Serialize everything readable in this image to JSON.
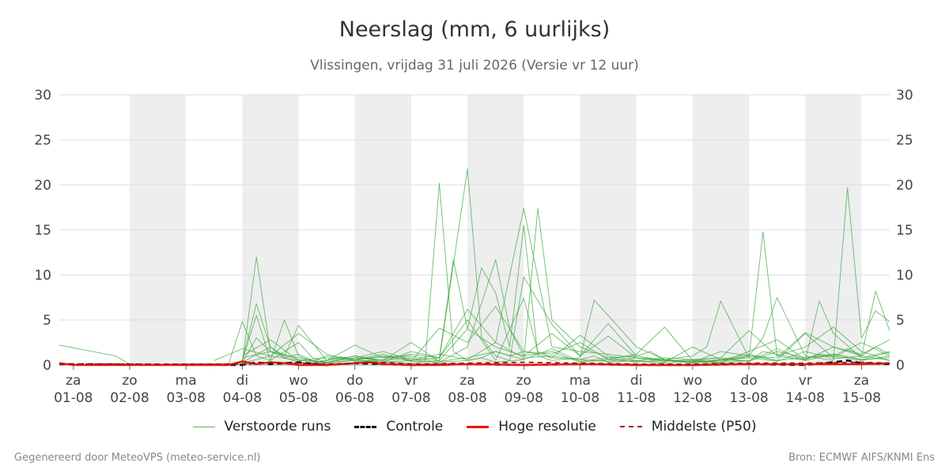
{
  "header": {
    "title": "Neerslag (mm, 6 uurlijks)",
    "subtitle": "Vlissingen, vrijdag 31 juli 2026 (Versie vr 12 uur)"
  },
  "footer": {
    "left": "Gegenereerd door MeteoVPS (meteo-service.nl)",
    "right": "Bron: ECMWF AIFS/KNMI Ens"
  },
  "legend": [
    {
      "label": "Verstoorde runs",
      "color": "#5cb85c",
      "style": "thin-solid"
    },
    {
      "label": "Controle",
      "color": "#111111",
      "style": "dashed"
    },
    {
      "label": "Hoge resolutie",
      "color": "#e8160c",
      "style": "solid"
    },
    {
      "label": "Middelste (P50)",
      "color": "#aa1111",
      "style": "dashed"
    }
  ],
  "colors": {
    "members": "#3aa53a",
    "control": "#111111",
    "hres": "#e8160c",
    "median": "#aa1111",
    "shade": "#eeeeee",
    "grid": "#dddddd"
  },
  "chart_data": {
    "type": "line",
    "title": "Neerslag (mm, 6 uurlijks)",
    "xlabel": "",
    "ylabel": "",
    "ylim": [
      0,
      30
    ],
    "yticks": [
      0,
      5,
      10,
      15,
      20,
      25,
      30
    ],
    "y_axis_both_sides": true,
    "grid": "horizontal",
    "legend_position": "bottom",
    "x_unit": "days from 01-08 00h (6-hourly steps)",
    "x_days": [
      {
        "day": "za",
        "date": "01-08"
      },
      {
        "day": "zo",
        "date": "02-08"
      },
      {
        "day": "ma",
        "date": "03-08"
      },
      {
        "day": "di",
        "date": "04-08"
      },
      {
        "day": "wo",
        "date": "05-08"
      },
      {
        "day": "do",
        "date": "06-08"
      },
      {
        "day": "vr",
        "date": "07-08"
      },
      {
        "day": "za",
        "date": "08-08"
      },
      {
        "day": "zo",
        "date": "09-08"
      },
      {
        "day": "ma",
        "date": "10-08"
      },
      {
        "day": "di",
        "date": "11-08"
      },
      {
        "day": "wo",
        "date": "12-08"
      },
      {
        "day": "do",
        "date": "13-08"
      },
      {
        "day": "vr",
        "date": "14-08"
      },
      {
        "day": "za",
        "date": "15-08"
      }
    ],
    "shaded_days": [
      "02-08",
      "04-08",
      "06-08",
      "08-08",
      "10-08",
      "12-08",
      "14-08"
    ],
    "x_start": -0.25,
    "x_end": 14.5,
    "series": [
      {
        "name": "Verstoorde runs",
        "role": "member",
        "x": [
          -0.25,
          0.75,
          1.0,
          4.25,
          4.5,
          4.75,
          5.0,
          5.75,
          6.0,
          6.5,
          7.0,
          7.25,
          7.5,
          7.75,
          8.0,
          8.25,
          8.5,
          9.0,
          9.25,
          9.5,
          10.0,
          10.5,
          11.0,
          11.5,
          12.0,
          12.25,
          13.0,
          13.25,
          13.5,
          13.75,
          14.0,
          14.25,
          14.5
        ],
        "values": [
          2.2,
          1.0,
          0.1,
          0.2,
          0.5,
          0.9,
          0.6,
          1.0,
          0.4,
          0.3,
          0.5,
          0.8,
          1.5,
          1.0,
          1.5,
          1.2,
          0.8,
          0.6,
          1.0,
          0.3,
          0.5,
          0.8,
          0.6,
          0.8,
          0.4,
          1.5,
          0.6,
          1.2,
          1.0,
          1.8,
          1.0,
          2.0,
          1.2
        ]
      },
      {
        "name": "Verstoorde runs",
        "role": "member",
        "x": [
          2.5,
          3.0,
          3.25,
          3.5,
          3.75,
          4.0,
          4.25,
          4.5,
          5.0,
          5.5,
          6.0,
          6.5,
          7.0,
          7.5,
          8.0,
          8.5,
          9.0,
          9.5,
          10.0,
          10.5,
          11.0,
          11.5,
          12.0,
          12.5,
          13.0,
          13.5,
          14.0,
          14.5
        ],
        "values": [
          0.0,
          0.2,
          12.0,
          1.5,
          0.8,
          0.3,
          0.2,
          0.5,
          1.0,
          0.3,
          0.2,
          0.5,
          4.0,
          2.0,
          1.0,
          1.5,
          0.3,
          0.6,
          0.4,
          0.2,
          0.5,
          0.3,
          1.0,
          0.5,
          0.8,
          1.0,
          0.5,
          1.0
        ]
      },
      {
        "name": "Verstoorde runs",
        "role": "member",
        "x": [
          2.75,
          3.0,
          3.25,
          3.5,
          3.75,
          4.0,
          4.25,
          4.5,
          5.0,
          5.5,
          6.0,
          6.5,
          7.0,
          7.5,
          8.0,
          8.5,
          9.0,
          9.5,
          10.0,
          10.5,
          11.0,
          11.5,
          12.0,
          12.5,
          13.0,
          13.5,
          14.0,
          14.5
        ],
        "values": [
          0.0,
          4.8,
          1.0,
          0.5,
          5.0,
          1.0,
          0.4,
          1.0,
          0.6,
          0.3,
          0.5,
          0.8,
          6.2,
          2.5,
          17.4,
          2.0,
          1.5,
          1.2,
          0.8,
          0.6,
          0.3,
          1.5,
          1.0,
          0.8,
          3.6,
          2.0,
          1.2,
          2.8
        ]
      },
      {
        "name": "Verstoorde runs",
        "role": "member",
        "x": [
          3.0,
          3.25,
          3.5,
          3.75,
          4.0,
          4.25,
          4.5,
          5.0,
          5.5,
          6.0,
          6.25,
          6.5,
          6.75,
          7.0,
          7.25,
          7.5,
          8.0,
          8.25,
          8.5,
          9.0,
          9.5,
          10.0,
          10.5,
          11.0,
          11.5,
          12.0,
          12.5,
          13.0,
          13.5,
          14.0,
          14.5
        ],
        "values": [
          0.5,
          6.8,
          2.0,
          0.8,
          1.2,
          0.5,
          0.3,
          0.8,
          1.5,
          0.6,
          0.4,
          20.2,
          1.5,
          0.5,
          0.8,
          0.3,
          0.6,
          17.4,
          5.0,
          2.0,
          0.8,
          1.0,
          0.5,
          0.2,
          0.6,
          0.4,
          1.5,
          0.8,
          1.2,
          0.6,
          0.8
        ]
      },
      {
        "name": "Verstoorde runs",
        "role": "member",
        "x": [
          3.0,
          3.5,
          3.75,
          4.0,
          4.5,
          5.0,
          5.5,
          6.0,
          6.5,
          7.0,
          7.25,
          7.5,
          7.75,
          8.0,
          8.5,
          9.0,
          9.5,
          10.0,
          10.5,
          11.0,
          11.5,
          12.0,
          12.5,
          13.0,
          13.5,
          14.0,
          14.25,
          14.5
        ],
        "values": [
          0.3,
          2.0,
          1.0,
          4.4,
          0.5,
          2.2,
          0.8,
          1.0,
          0.5,
          21.8,
          3.0,
          1.0,
          0.5,
          9.8,
          4.5,
          1.0,
          3.2,
          0.8,
          0.4,
          0.6,
          0.3,
          1.5,
          2.8,
          0.6,
          2.0,
          1.0,
          8.2,
          3.8
        ]
      },
      {
        "name": "Verstoorde runs",
        "role": "member",
        "x": [
          3.0,
          3.5,
          4.0,
          4.5,
          5.0,
          5.5,
          6.0,
          6.5,
          6.75,
          7.0,
          7.25,
          7.5,
          7.75,
          8.0,
          8.25,
          8.5,
          9.0,
          9.25,
          9.5,
          10.0,
          10.5,
          11.0,
          11.5,
          12.0,
          12.25,
          12.5,
          13.0,
          13.5,
          13.75,
          14.0,
          14.25,
          14.5
        ],
        "values": [
          0.2,
          1.0,
          3.5,
          1.2,
          0.4,
          0.6,
          1.2,
          0.8,
          11.7,
          4.0,
          10.8,
          8.0,
          2.0,
          15.5,
          1.0,
          0.5,
          0.8,
          7.2,
          5.5,
          2.0,
          0.6,
          0.3,
          0.5,
          1.0,
          3.0,
          7.5,
          1.0,
          0.5,
          19.7,
          3.0,
          6.0,
          4.8
        ]
      },
      {
        "name": "Verstoorde runs",
        "role": "member",
        "x": [
          3.0,
          3.25,
          3.5,
          4.0,
          4.25,
          4.5,
          5.0,
          5.5,
          6.0,
          6.5,
          7.0,
          7.5,
          7.75,
          8.0,
          8.5,
          9.0,
          9.5,
          10.0,
          10.25,
          10.5,
          11.0,
          11.25,
          11.5,
          12.0,
          12.25,
          12.5,
          13.0,
          13.25,
          13.5,
          14.0,
          14.5
        ],
        "values": [
          0.5,
          5.5,
          0.5,
          2.5,
          0.8,
          0.3,
          1.0,
          0.5,
          0.8,
          0.3,
          2.0,
          11.7,
          4.0,
          1.0,
          3.5,
          1.0,
          4.6,
          1.0,
          1.5,
          0.6,
          1.0,
          2.0,
          7.1,
          0.8,
          14.8,
          1.0,
          0.5,
          7.1,
          3.5,
          0.8,
          1.5
        ]
      },
      {
        "name": "Verstoorde runs",
        "role": "member",
        "x": [
          3.0,
          3.5,
          4.0,
          4.5,
          5.0,
          5.5,
          6.0,
          6.5,
          7.0,
          7.5,
          8.0,
          8.5,
          9.0,
          9.5,
          10.0,
          10.5,
          11.0,
          11.5,
          12.0,
          12.5,
          13.0,
          13.5,
          14.0,
          14.5
        ],
        "values": [
          1.0,
          2.8,
          0.5,
          0.8,
          0.6,
          1.2,
          0.4,
          4.1,
          2.5,
          6.5,
          1.5,
          1.2,
          2.5,
          0.6,
          1.2,
          4.2,
          0.5,
          0.8,
          3.8,
          1.0,
          2.0,
          4.2,
          1.5,
          0.5
        ]
      },
      {
        "name": "Verstoorde runs",
        "role": "member",
        "x": [
          3.0,
          3.25,
          3.5,
          4.0,
          4.5,
          5.0,
          5.5,
          6.0,
          6.5,
          7.0,
          7.5,
          8.0,
          8.25,
          8.5,
          9.0,
          9.5,
          10.0,
          10.5,
          11.0,
          11.5,
          12.0,
          12.5,
          13.0,
          13.5,
          14.0,
          14.5
        ],
        "values": [
          0.3,
          3.0,
          1.5,
          0.6,
          0.2,
          0.5,
          0.3,
          1.5,
          0.8,
          5.0,
          0.5,
          7.4,
          1.5,
          0.8,
          3.3,
          1.0,
          0.5,
          0.3,
          2.0,
          0.6,
          1.2,
          0.5,
          3.5,
          0.8,
          2.5,
          1.0
        ]
      },
      {
        "name": "Verstoorde runs",
        "role": "member",
        "x": [
          2.5,
          3.0,
          3.5,
          4.0,
          4.5,
          5.0,
          5.5,
          6.0,
          6.5,
          7.0,
          7.5,
          8.0,
          8.5,
          9.0,
          9.5,
          10.0,
          10.5,
          11.0,
          11.5,
          12.0,
          12.5,
          13.0,
          13.5,
          14.0,
          14.5
        ],
        "values": [
          0.5,
          1.8,
          1.0,
          0.5,
          0.3,
          0.8,
          0.5,
          2.5,
          0.4,
          0.8,
          1.5,
          0.6,
          1.8,
          0.4,
          0.8,
          0.3,
          0.6,
          0.4,
          0.2,
          0.5,
          1.8,
          0.5,
          1.2,
          0.6,
          1.4
        ]
      },
      {
        "name": "Verstoorde runs",
        "role": "member",
        "x": [
          3.0,
          3.5,
          4.0,
          4.5,
          5.0,
          5.5,
          6.0,
          6.5,
          7.0,
          7.5,
          8.0,
          8.5,
          9.0,
          9.5,
          10.0,
          10.5,
          11.0,
          11.5,
          12.0,
          12.5,
          13.0,
          13.5,
          14.0,
          14.5
        ],
        "values": [
          0.8,
          1.5,
          0.8,
          0.2,
          0.6,
          1.0,
          0.5,
          1.2,
          0.6,
          2.5,
          0.8,
          1.0,
          0.6,
          0.4,
          0.8,
          0.5,
          0.3,
          0.6,
          0.8,
          0.4,
          1.5,
          0.7,
          1.0,
          0.5
        ]
      },
      {
        "name": "Controle",
        "role": "control",
        "x": [
          -0.25,
          3.0,
          3.25,
          3.5,
          4.0,
          4.5,
          5.0,
          5.5,
          6.0,
          7.0,
          8.0,
          9.0,
          10.0,
          11.0,
          12.0,
          13.0,
          13.5,
          13.75,
          14.0,
          14.5
        ],
        "values": [
          0.1,
          0.0,
          0.3,
          0.1,
          0.3,
          0.0,
          0.2,
          0.1,
          0.0,
          0.1,
          0.0,
          0.1,
          0.0,
          0.0,
          0.1,
          0.0,
          0.3,
          0.5,
          0.2,
          0.1
        ]
      },
      {
        "name": "Hoge resolutie",
        "role": "hres",
        "x": [
          -0.25,
          0.0,
          2.75,
          3.0,
          3.25,
          3.5,
          3.75,
          4.0,
          4.5,
          5.0,
          5.25,
          5.5,
          6.0,
          6.5,
          7.0,
          8.0,
          9.0,
          10.0,
          11.0,
          12.0,
          13.0,
          14.0,
          14.5
        ],
        "values": [
          0.2,
          0.0,
          0.0,
          0.4,
          0.1,
          0.3,
          0.2,
          0.0,
          0.0,
          0.2,
          0.3,
          0.1,
          0.0,
          0.0,
          0.1,
          0.0,
          0.1,
          0.0,
          0.0,
          0.1,
          0.1,
          0.1,
          0.2
        ]
      },
      {
        "name": "Middelste (P50)",
        "role": "median",
        "x": [
          -0.25,
          3.0,
          3.5,
          4.0,
          4.5,
          5.0,
          5.5,
          6.0,
          7.0,
          8.0,
          9.0,
          10.0,
          11.0,
          12.0,
          13.0,
          14.0,
          14.5
        ],
        "values": [
          0.1,
          0.1,
          0.3,
          0.2,
          0.1,
          0.2,
          0.3,
          0.1,
          0.2,
          0.3,
          0.2,
          0.1,
          0.1,
          0.2,
          0.2,
          0.3,
          0.2
        ]
      }
    ]
  }
}
